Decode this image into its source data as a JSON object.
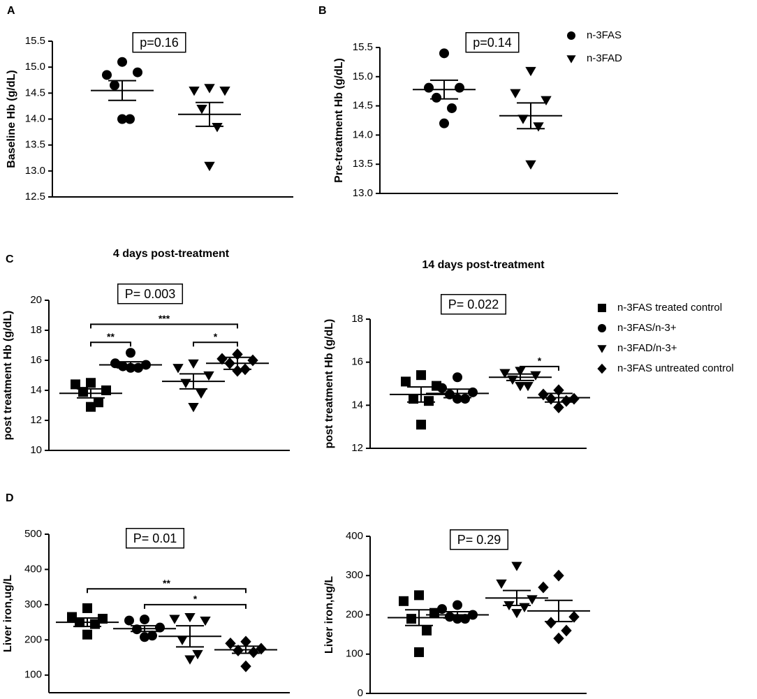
{
  "panels": [
    "A",
    "B",
    "C",
    "D"
  ],
  "chart_data": [
    {
      "type": "scatter",
      "ylabel": "Baseline Hb (g/dL)",
      "annotation": "p=0.16",
      "ylim": [
        12.5,
        15.5
      ],
      "yticks": [
        12.5,
        {
          "value": 13,
          "label": "13.0"
        },
        13.5,
        {
          "value": 14,
          "label": "14.0"
        },
        14.5,
        {
          "value": 15,
          "label": "15.0"
        },
        15.5
      ],
      "groups": [
        {
          "marker": "circle",
          "values": [
            15.1,
            14.85,
            14.9,
            14.65,
            14.0,
            14.0
          ],
          "mean": 14.55,
          "sem": 0.19
        },
        {
          "marker": "triangle",
          "values": [
            14.6,
            14.55,
            14.55,
            14.2,
            13.85,
            13.1
          ],
          "mean": 14.09,
          "sem": 0.23
        }
      ]
    },
    {
      "type": "scatter",
      "ylabel": "Pre-treatment Hb (g/dL)",
      "annotation": "p=0.14",
      "ylim": [
        13,
        15.5
      ],
      "yticks": [
        {
          "value": 13,
          "label": "13.0"
        },
        13.5,
        {
          "value": 14,
          "label": "14.0"
        },
        14.5,
        {
          "value": 15,
          "label": "15.0"
        },
        15.5
      ],
      "groups": [
        {
          "marker": "circle",
          "values": [
            15.4,
            14.81,
            14.81,
            14.64,
            14.46,
            14.2
          ],
          "mean": 14.78,
          "sem": 0.16
        },
        {
          "marker": "triangle",
          "values": [
            15.1,
            14.72,
            14.6,
            14.28,
            14.15,
            13.5
          ],
          "mean": 14.33,
          "sem": 0.22
        }
      ],
      "legend": [
        {
          "name": "n-3FAS",
          "marker": "circle"
        },
        {
          "name": "n-3FAD",
          "marker": "triangle"
        }
      ]
    },
    {
      "type": "scatter",
      "title": "4 days post-treatment",
      "ylabel": "post treatment Hb (g/dL)",
      "annotation": "P= 0.003",
      "ylim": [
        10,
        20
      ],
      "yticks": [
        10,
        12,
        14,
        16,
        18,
        20
      ],
      "groups": [
        {
          "marker": "square",
          "values": [
            14.5,
            14.4,
            14.0,
            13.9,
            13.2,
            12.9
          ],
          "mean": 13.8,
          "sem": 0.3
        },
        {
          "marker": "circle",
          "values": [
            16.5,
            15.8,
            15.7,
            15.6,
            15.5,
            15.5
          ],
          "mean": 15.7,
          "sem": 0.2
        },
        {
          "marker": "triangle",
          "values": [
            15.8,
            15.5,
            15.0,
            14.5,
            13.8,
            12.9
          ],
          "mean": 14.6,
          "sem": 0.5
        },
        {
          "marker": "diamond",
          "values": [
            16.4,
            16.1,
            16.0,
            15.8,
            15.4,
            15.3
          ],
          "mean": 15.8,
          "sem": 0.4
        }
      ],
      "brackets": [
        {
          "from": 0,
          "to": 1,
          "y": 17.2,
          "label": "**"
        },
        {
          "from": 2,
          "to": 3,
          "y": 17.2,
          "label": "*"
        },
        {
          "from": 0,
          "to": 3,
          "y": 18.4,
          "label": "***"
        }
      ]
    },
    {
      "type": "scatter",
      "title": "14 days post-treatment",
      "ylabel": "post treatment Hb (g/dL)",
      "annotation": "P= 0.022",
      "ylim": [
        12,
        18
      ],
      "yticks": [
        12,
        14,
        16,
        18
      ],
      "groups": [
        {
          "marker": "square",
          "values": [
            15.4,
            15.1,
            14.9,
            14.3,
            14.2,
            13.1
          ],
          "mean": 14.5,
          "sem": 0.35
        },
        {
          "marker": "circle",
          "values": [
            15.3,
            14.8,
            14.6,
            14.5,
            14.3,
            14.3
          ],
          "mean": 14.55,
          "sem": 0.2
        },
        {
          "marker": "triangle",
          "values": [
            15.6,
            15.5,
            15.4,
            15.2,
            14.9,
            14.9
          ],
          "mean": 15.3,
          "sem": 0.15
        },
        {
          "marker": "diamond",
          "values": [
            14.7,
            14.5,
            14.3,
            14.3,
            14.2,
            13.9
          ],
          "mean": 14.35,
          "sem": 0.2
        }
      ],
      "brackets": [
        {
          "from": 2,
          "to": 3,
          "y": 15.8,
          "label": "*"
        }
      ],
      "legend": [
        {
          "name": "n-3FAS treated control",
          "marker": "square"
        },
        {
          "name": "n-3FAS/n-3+",
          "marker": "circle"
        },
        {
          "name": "n-3FAD/n-3+",
          "marker": "triangle"
        },
        {
          "name": "n-3FAS untreated control",
          "marker": "diamond"
        }
      ]
    },
    {
      "type": "scatter",
      "ylabel": "Liver iron,ug/L",
      "annotation": "P= 0.01",
      "ylim": [
        50,
        500
      ],
      "yticks": [
        100,
        200,
        300,
        400,
        500
      ],
      "groups": [
        {
          "marker": "square",
          "values": [
            290,
            265,
            260,
            250,
            245,
            215
          ],
          "mean": 250,
          "sem": 12
        },
        {
          "marker": "circle",
          "values": [
            258,
            255,
            235,
            230,
            212,
            208
          ],
          "mean": 232,
          "sem": 8
        },
        {
          "marker": "triangle",
          "values": [
            265,
            260,
            255,
            200,
            160,
            145
          ],
          "mean": 210,
          "sem": 30
        },
        {
          "marker": "diamond",
          "values": [
            195,
            190,
            175,
            170,
            165,
            125
          ],
          "mean": 172,
          "sem": 10
        }
      ],
      "brackets": [
        {
          "from": 0,
          "to": 3,
          "y": 345,
          "label": "**"
        },
        {
          "from": 1,
          "to": 3,
          "y": 300,
          "label": "*"
        }
      ]
    },
    {
      "type": "scatter",
      "ylabel": "Liver iron,ug/L",
      "annotation": "P= 0.29",
      "ylim": [
        0,
        400
      ],
      "yticks": [
        0,
        100,
        200,
        300,
        400
      ],
      "groups": [
        {
          "marker": "square",
          "values": [
            250,
            235,
            205,
            190,
            160,
            105
          ],
          "mean": 193,
          "sem": 20
        },
        {
          "marker": "circle",
          "values": [
            225,
            215,
            200,
            195,
            190,
            190
          ],
          "mean": 200,
          "sem": 8
        },
        {
          "marker": "triangle",
          "values": [
            325,
            280,
            240,
            225,
            220,
            205
          ],
          "mean": 243,
          "sem": 19
        },
        {
          "marker": "diamond",
          "values": [
            300,
            270,
            195,
            180,
            160,
            140
          ],
          "mean": 210,
          "sem": 27
        }
      ]
    }
  ]
}
